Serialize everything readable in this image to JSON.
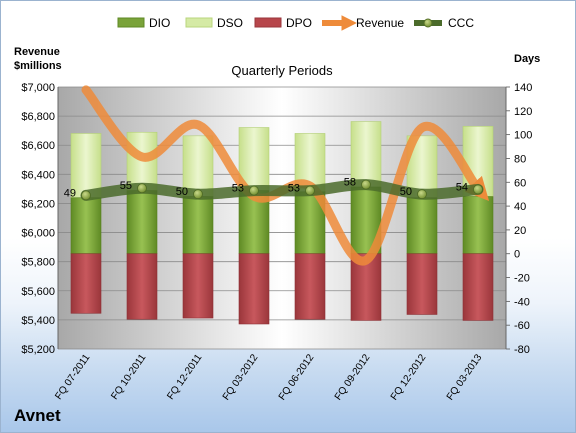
{
  "chart_data": {
    "type": "bar",
    "title": "Quarterly Periods",
    "company": "Avnet",
    "left_axis_label": [
      "Revenue",
      "$millions"
    ],
    "right_axis_label": "Days",
    "categories": [
      "FQ 07-2011",
      "FQ 10-2011",
      "FQ 12-2011",
      "FQ 03-2012",
      "FQ 06-2012",
      "FQ 09-2012",
      "FQ 12-2012",
      "FQ 03-2013"
    ],
    "left_ylim": [
      5200,
      7000
    ],
    "left_ticks": [
      5200,
      5400,
      5600,
      5800,
      6000,
      6200,
      6400,
      6600,
      6800,
      7000
    ],
    "left_tick_labels": [
      "$5,200",
      "$5,400",
      "$5,600",
      "$5,800",
      "$6,000",
      "$6,200",
      "$6,400",
      "$6,600",
      "$6,800",
      "$7,000"
    ],
    "right_ylim": [
      -80,
      140
    ],
    "right_ticks": [
      -80,
      -60,
      -40,
      -20,
      0,
      20,
      40,
      60,
      80,
      100,
      120,
      140
    ],
    "right_tick_labels": [
      "-80",
      "-60",
      "-40",
      "-20",
      "0",
      "20",
      "40",
      "60",
      "80",
      "100",
      "120",
      "140"
    ],
    "legend_position": "top",
    "series": [
      {
        "name": "DIO",
        "axis": "right",
        "color": "#7aa33a",
        "values": [
          47,
          53,
          48,
          53,
          52,
          56,
          47,
          48
        ]
      },
      {
        "name": "DSO",
        "axis": "right",
        "color": "#d5eaa5",
        "values": [
          101,
          102,
          99,
          106,
          101,
          111,
          99,
          107
        ]
      },
      {
        "name": "DPO",
        "axis": "right",
        "color": "#b7464b",
        "values": [
          -50,
          -55,
          -54,
          -59,
          -55,
          -56,
          -51,
          -56
        ]
      },
      {
        "name": "Revenue",
        "axis": "left",
        "color": "#ee8b3a",
        "values": [
          6980,
          6520,
          6740,
          6250,
          6320,
          5810,
          6720,
          6300
        ]
      },
      {
        "name": "CCC",
        "axis": "right",
        "color": "#4b6b2b",
        "values": [
          49,
          55,
          50,
          53,
          53,
          58,
          50,
          54
        ]
      }
    ],
    "ccc_labels": [
      "49",
      "55",
      "50",
      "53",
      "53",
      "58",
      "50",
      "54"
    ]
  }
}
